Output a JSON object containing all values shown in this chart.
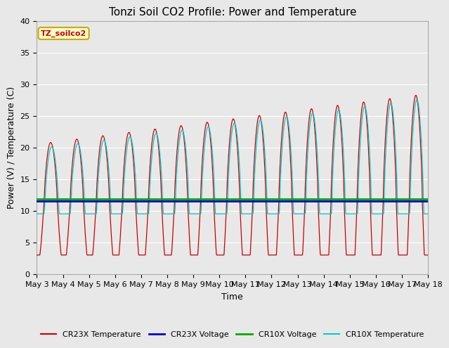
{
  "title": "Tonzi Soil CO2 Profile: Power and Temperature",
  "xlabel": "Time",
  "ylabel": "Power (V) / Temperature (C)",
  "ylim": [
    0,
    40
  ],
  "n_days": 15,
  "x_tick_labels": [
    "May 3",
    "May 4",
    "May 5",
    "May 6",
    "May 7",
    "May 8",
    "May 9",
    "May 10",
    "May 11",
    "May 12",
    "May 13",
    "May 14",
    "May 15",
    "May 16",
    "May 17",
    "May 18"
  ],
  "cr23x_voltage_value": 11.5,
  "cr10x_voltage_value": 11.9,
  "annotation_text": "TZ_soilco2",
  "annotation_bg": "#ffffcc",
  "annotation_border": "#ccaa00",
  "annotation_text_color": "#cc0000",
  "fig_bg_color": "#e8e8e8",
  "plot_bg_color": "#e8e8e8",
  "cr23x_temp_color": "#cc0000",
  "cr23x_volt_color": "#0000cc",
  "cr10x_volt_color": "#00aa00",
  "cr10x_temp_color": "#00cccc",
  "legend_labels": [
    "CR23X Temperature",
    "CR23X Voltage",
    "CR10X Voltage",
    "CR10X Temperature"
  ],
  "title_fontsize": 11,
  "axis_label_fontsize": 9,
  "tick_fontsize": 8
}
